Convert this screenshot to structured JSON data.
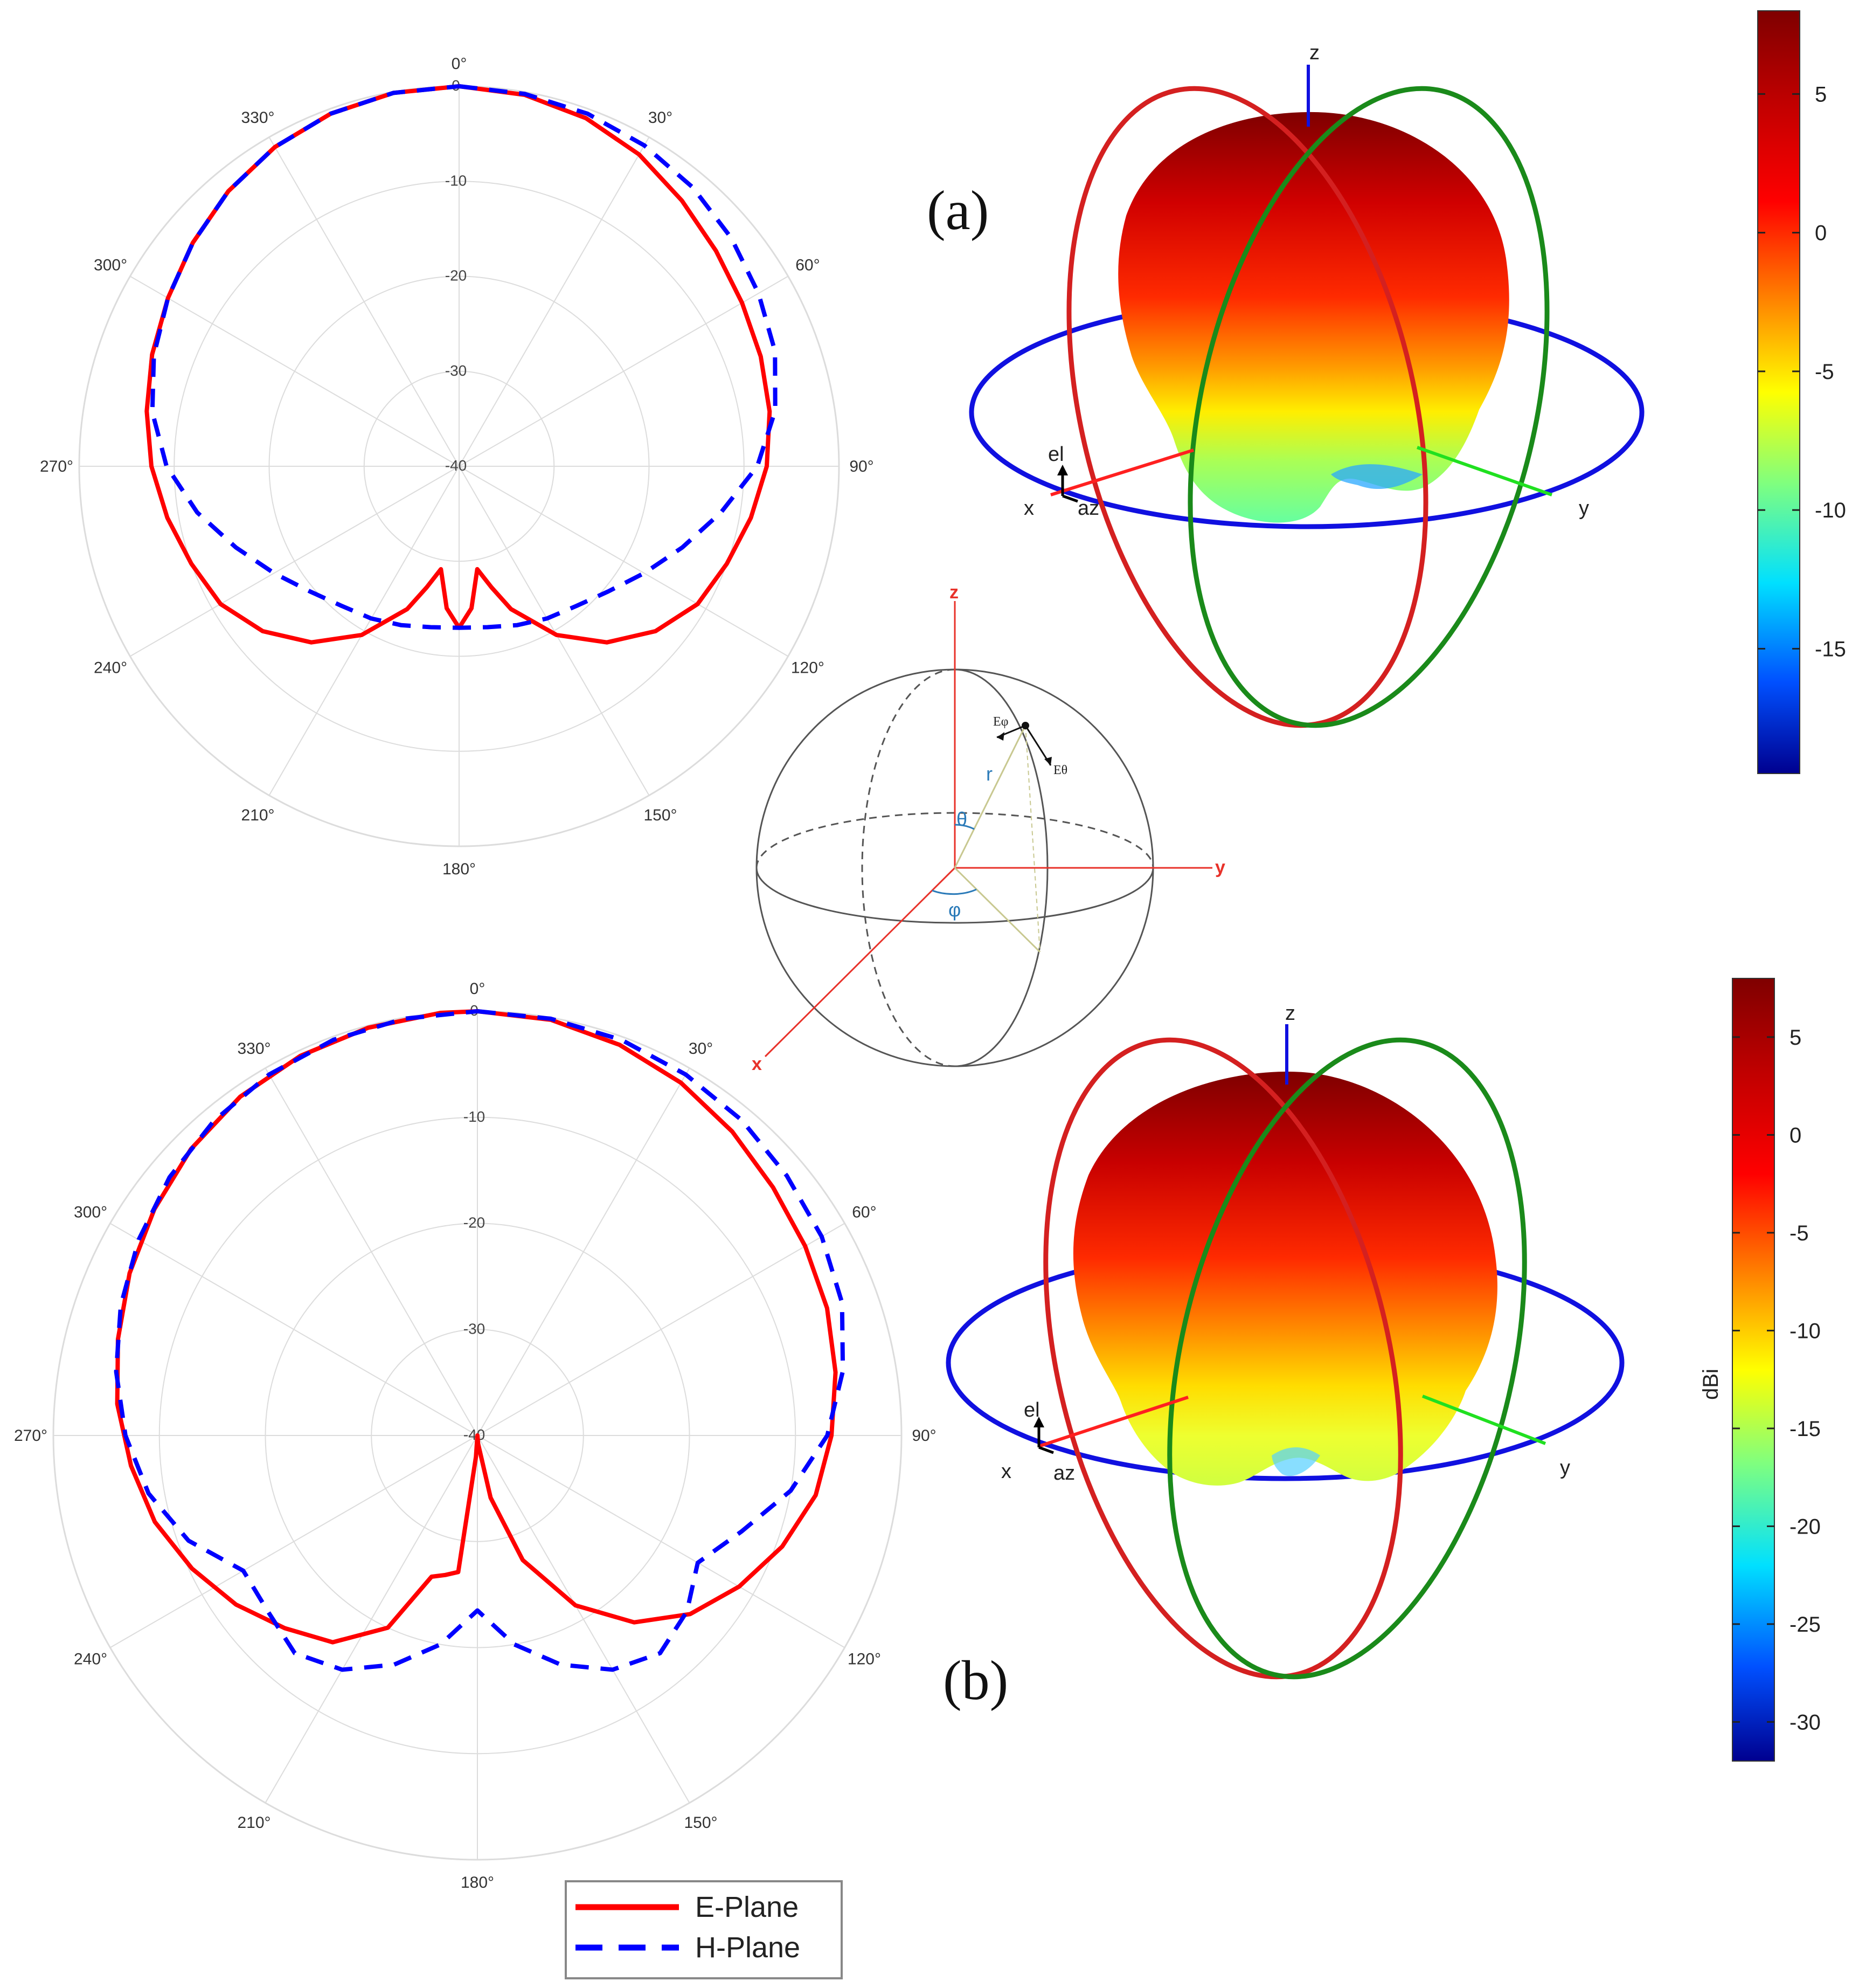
{
  "colors": {
    "e_plane": "#ff0000",
    "h_plane": "#0000ff",
    "grid": "#dcdcdc",
    "ring_x": "#d42020",
    "ring_y": "#1a8a1a",
    "ring_z": "#1010e0",
    "axis_x": "#ff2020",
    "axis_y": "#20e020",
    "axis_z": "#1010e0",
    "coord_axes": "#e8322a",
    "coord_sphere": "#555555"
  },
  "chart_data": [
    {
      "id": "polar-a",
      "type": "polar-line",
      "angle_unit": "deg",
      "angle_direction": "clockwise",
      "zero_location": "top",
      "angle_ticks": [
        "0°",
        "30°",
        "60°",
        "90°",
        "120°",
        "150°",
        "180°",
        "210°",
        "240°",
        "270°",
        "300°",
        "330°"
      ],
      "r_ticks": [
        "0",
        "-10",
        "-20",
        "-30",
        "-40"
      ],
      "rlim": [
        -40,
        0
      ],
      "series": [
        {
          "name": "E-Plane",
          "style": "solid",
          "points": [
            [
              0,
              0
            ],
            [
              10,
              -0.3
            ],
            [
              20,
              -1.0
            ],
            [
              30,
              -2.1
            ],
            [
              40,
              -3.5
            ],
            [
              50,
              -4.7
            ],
            [
              60,
              -5.6
            ],
            [
              70,
              -6.2
            ],
            [
              80,
              -6.8
            ],
            [
              90,
              -7.6
            ],
            [
              100,
              -8.8
            ],
            [
              110,
              -10.0
            ],
            [
              120,
              -11.0
            ],
            [
              130,
              -13.0
            ],
            [
              140,
              -15.8
            ],
            [
              150,
              -19.5
            ],
            [
              160,
              -24.0
            ],
            [
              165,
              -26.8
            ],
            [
              170,
              -29.0
            ],
            [
              175,
              -25.0
            ],
            [
              180,
              -23.0
            ],
            [
              185,
              -25.0
            ],
            [
              190,
              -29.0
            ],
            [
              195,
              -26.8
            ],
            [
              200,
              -24.0
            ],
            [
              210,
              -19.5
            ],
            [
              220,
              -15.8
            ],
            [
              230,
              -13.0
            ],
            [
              240,
              -11.0
            ],
            [
              250,
              -10.0
            ],
            [
              260,
              -8.8
            ],
            [
              270,
              -7.6
            ],
            [
              280,
              -6.6
            ],
            [
              290,
              -5.6
            ],
            [
              300,
              -4.6
            ],
            [
              310,
              -3.4
            ],
            [
              320,
              -2.2
            ],
            [
              330,
              -1.2
            ],
            [
              340,
              -0.5
            ],
            [
              350,
              -0.1
            ]
          ]
        },
        {
          "name": "H-Plane",
          "style": "dashed",
          "points": [
            [
              0,
              0
            ],
            [
              10,
              -0.2
            ],
            [
              20,
              -0.5
            ],
            [
              30,
              -1.0
            ],
            [
              40,
              -1.7
            ],
            [
              50,
              -2.6
            ],
            [
              60,
              -3.6
            ],
            [
              70,
              -4.6
            ],
            [
              80,
              -6.2
            ],
            [
              90,
              -8.6
            ],
            [
              100,
              -12.0
            ],
            [
              110,
              -15.0
            ],
            [
              120,
              -17.5
            ],
            [
              130,
              -19.5
            ],
            [
              140,
              -20.8
            ],
            [
              150,
              -21.5
            ],
            [
              160,
              -22.2
            ],
            [
              170,
              -22.8
            ],
            [
              180,
              -23.0
            ],
            [
              190,
              -22.8
            ],
            [
              200,
              -22.2
            ],
            [
              210,
              -21.5
            ],
            [
              220,
              -20.8
            ],
            [
              230,
              -19.5
            ],
            [
              240,
              -17.5
            ],
            [
              250,
              -15.0
            ],
            [
              260,
              -12.0
            ],
            [
              270,
              -9.2
            ],
            [
              280,
              -7.2
            ],
            [
              290,
              -5.8
            ],
            [
              300,
              -4.6
            ],
            [
              310,
              -3.4
            ],
            [
              320,
              -2.2
            ],
            [
              330,
              -1.2
            ],
            [
              340,
              -0.5
            ],
            [
              350,
              -0.1
            ]
          ]
        }
      ]
    },
    {
      "id": "polar-b",
      "type": "polar-line",
      "angle_unit": "deg",
      "angle_direction": "clockwise",
      "zero_location": "top",
      "angle_ticks": [
        "0°",
        "30°",
        "60°",
        "90°",
        "120°",
        "150°",
        "180°",
        "210°",
        "240°",
        "270°",
        "300°",
        "330°"
      ],
      "r_ticks": [
        "0",
        "-10",
        "-20",
        "-30",
        "-40"
      ],
      "rlim": [
        -40,
        0
      ],
      "series": [
        {
          "name": "E-Plane",
          "style": "solid",
          "points": [
            [
              0,
              0
            ],
            [
              10,
              -0.2
            ],
            [
              20,
              -0.8
            ],
            [
              30,
              -1.6
            ],
            [
              40,
              -2.6
            ],
            [
              50,
              -3.6
            ],
            [
              60,
              -4.3
            ],
            [
              70,
              -4.9
            ],
            [
              80,
              -5.7
            ],
            [
              90,
              -6.6
            ],
            [
              100,
              -7.6
            ],
            [
              110,
              -9.4
            ],
            [
              120,
              -11.5
            ],
            [
              130,
              -13.8
            ],
            [
              140,
              -17.0
            ],
            [
              150,
              -21.5
            ],
            [
              160,
              -27.5
            ],
            [
              168,
              -34.0
            ],
            [
              175,
              -39.2
            ],
            [
              180,
              -40.0
            ],
            [
              184,
              -38.0
            ],
            [
              188,
              -27.0
            ],
            [
              193,
              -26.5
            ],
            [
              198,
              -26.0
            ],
            [
              205,
              -20.0
            ],
            [
              215,
              -16.2
            ],
            [
              225,
              -14.3
            ],
            [
              235,
              -12.2
            ],
            [
              245,
              -10.3
            ],
            [
              255,
              -8.5
            ],
            [
              265,
              -7.2
            ],
            [
              275,
              -5.9
            ],
            [
              285,
              -4.9
            ],
            [
              295,
              -3.8
            ],
            [
              305,
              -2.8
            ],
            [
              315,
              -1.8
            ],
            [
              325,
              -1.0
            ],
            [
              335,
              -0.5
            ],
            [
              345,
              -0.2
            ],
            [
              355,
              0
            ]
          ]
        },
        {
          "name": "H-Plane",
          "style": "dashed",
          "points": [
            [
              0,
              0
            ],
            [
              10,
              -0.1
            ],
            [
              20,
              -0.3
            ],
            [
              30,
              -0.7
            ],
            [
              40,
              -1.2
            ],
            [
              50,
              -1.9
            ],
            [
              60,
              -2.5
            ],
            [
              70,
              -3.4
            ],
            [
              80,
              -5.0
            ],
            [
              90,
              -7.0
            ],
            [
              100,
              -10.0
            ],
            [
              110,
              -13.5
            ],
            [
              120,
              -16.0
            ],
            [
              130,
              -14.2
            ],
            [
              140,
              -13.2
            ],
            [
              150,
              -14.5
            ],
            [
              160,
              -17.0
            ],
            [
              170,
              -20.0
            ],
            [
              180,
              -23.5
            ],
            [
              190,
              -20.0
            ],
            [
              200,
              -17.0
            ],
            [
              210,
              -14.5
            ],
            [
              220,
              -13.2
            ],
            [
              230,
              -14.2
            ],
            [
              240,
              -14.5
            ],
            [
              250,
              -11.0
            ],
            [
              260,
              -8.5
            ],
            [
              270,
              -6.8
            ],
            [
              280,
              -5.4
            ],
            [
              290,
              -4.2
            ],
            [
              300,
              -3.1
            ],
            [
              310,
              -2.1
            ],
            [
              320,
              -1.3
            ],
            [
              330,
              -0.7
            ],
            [
              340,
              -0.3
            ],
            [
              350,
              -0.1
            ]
          ]
        }
      ]
    },
    {
      "id": "pattern3d-a",
      "type": "3d-surface",
      "panel_label": "(a)",
      "axis_labels": {
        "x": "x",
        "y": "y",
        "z": "z",
        "el": "el",
        "az": "az"
      },
      "colorbar": {
        "ticks": [
          5,
          0,
          -5,
          -10,
          -15
        ],
        "range": [
          -19.5,
          8
        ],
        "label": ""
      }
    },
    {
      "id": "pattern3d-b",
      "type": "3d-surface",
      "panel_label": "(b)",
      "axis_labels": {
        "x": "x",
        "y": "y",
        "z": "z",
        "el": "el",
        "az": "az"
      },
      "colorbar": {
        "ticks": [
          5,
          0,
          -5,
          -10,
          -15,
          -20,
          -25,
          -30
        ],
        "range": [
          -32,
          8
        ],
        "label": "dBi"
      }
    }
  ],
  "coordinate_diagram": {
    "axis_x": "x",
    "axis_y": "y",
    "axis_z": "z",
    "r": "r",
    "theta": "θ",
    "phi": "φ",
    "e_phi": "Eφ",
    "e_theta": "Eθ"
  },
  "legend": {
    "entries": [
      {
        "name": "E-Plane",
        "style": "solid"
      },
      {
        "name": "H-Plane",
        "style": "dashed"
      }
    ]
  }
}
